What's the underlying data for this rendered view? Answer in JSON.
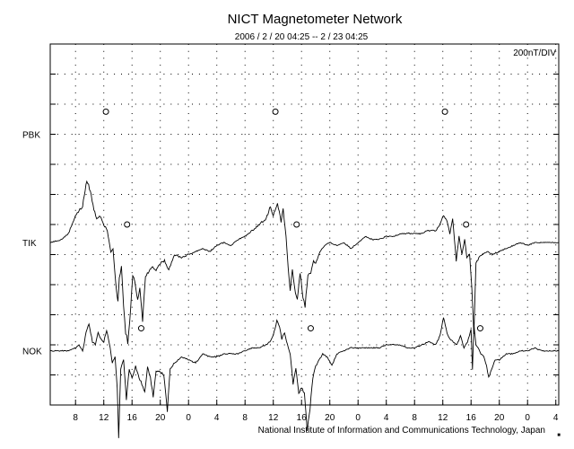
{
  "chart_data": {
    "type": "line",
    "title": "NICT Magnetometer Network",
    "subtitle": "2006 / 2 / 20  04:25 --  2 / 23  04:25",
    "scale_label": "200nT/DIV",
    "credit": "National Institute of Information and Communications Technology, Japan",
    "x_tick_labels": [
      "8",
      "12",
      "16",
      "20",
      "0",
      "4",
      "8",
      "12",
      "16",
      "20",
      "0",
      "4",
      "8",
      "12",
      "16",
      "20",
      "0",
      "4"
    ],
    "x_range_hours": [
      4.4167,
      76.4167
    ],
    "x_tick_start_hour": 8,
    "x_tick_step_hours": 4,
    "y_divisions": 12,
    "grid": "dotted",
    "stations": [
      {
        "name": "PBK",
        "baseline_div": 3,
        "markers_hour": [
          12.3,
          36.3,
          60.3
        ],
        "marker_offset_div": -0.75,
        "points": []
      },
      {
        "name": "TIK",
        "baseline_div": 6.6,
        "markers_hour": [
          15.3,
          39.3,
          63.3
        ],
        "marker_offset_div": -0.6,
        "points": [
          [
            4.4,
            0
          ],
          [
            6,
            0.1
          ],
          [
            7,
            0.3
          ],
          [
            8,
            0.9
          ],
          [
            9,
            1.2
          ],
          [
            9.6,
            2.1
          ],
          [
            10.1,
            1.7
          ],
          [
            10.6,
            1.1
          ],
          [
            11,
            0.8
          ],
          [
            11.5,
            0.9
          ],
          [
            12,
            0.6
          ],
          [
            12.5,
            0.4
          ],
          [
            13,
            -0.3
          ],
          [
            13.3,
            -0.2
          ],
          [
            13.8,
            -1.6
          ],
          [
            14,
            -2.0
          ],
          [
            14.2,
            -1.2
          ],
          [
            14.5,
            -0.8
          ],
          [
            14.8,
            -2.1
          ],
          [
            15.1,
            -3.0
          ],
          [
            15.4,
            -3.3
          ],
          [
            15.8,
            -2.2
          ],
          [
            16.1,
            -1.1
          ],
          [
            16.4,
            -1.3
          ],
          [
            16.8,
            -1.9
          ],
          [
            17.1,
            -1.5
          ],
          [
            17.5,
            -2.6
          ],
          [
            17.9,
            -1.1
          ],
          [
            18.3,
            -1.0
          ],
          [
            18.8,
            -0.8
          ],
          [
            19.4,
            -0.9
          ],
          [
            20,
            -0.7
          ],
          [
            20.6,
            -0.6
          ],
          [
            21.2,
            -0.9
          ],
          [
            22,
            -0.4
          ],
          [
            23,
            -0.5
          ],
          [
            24,
            -0.4
          ],
          [
            25,
            -0.3
          ],
          [
            26,
            -0.2
          ],
          [
            27,
            -0.3
          ],
          [
            28,
            -0.1
          ],
          [
            29,
            0.0
          ],
          [
            30,
            -0.1
          ],
          [
            31,
            0.1
          ],
          [
            32,
            0.2
          ],
          [
            33,
            0.4
          ],
          [
            34,
            0.6
          ],
          [
            35,
            0.8
          ],
          [
            35.6,
            1.2
          ],
          [
            36,
            0.9
          ],
          [
            36.6,
            1.3
          ],
          [
            37.1,
            0.7
          ],
          [
            37.4,
            1.1
          ],
          [
            37.8,
            0.2
          ],
          [
            38.1,
            -0.8
          ],
          [
            38.4,
            -1.6
          ],
          [
            38.7,
            -0.9
          ],
          [
            39,
            -1.5
          ],
          [
            39.4,
            -1.9
          ],
          [
            39.8,
            -1.0
          ],
          [
            40.2,
            -1.8
          ],
          [
            40.5,
            -2.1
          ],
          [
            40.9,
            -1.1
          ],
          [
            41.3,
            -1.0
          ],
          [
            41.7,
            -0.6
          ],
          [
            42,
            -0.7
          ],
          [
            42.6,
            -0.3
          ],
          [
            43.3,
            -0.1
          ],
          [
            44,
            0
          ],
          [
            45,
            -0.1
          ],
          [
            46,
            0.0
          ],
          [
            47,
            -0.2
          ],
          [
            48,
            0
          ],
          [
            49,
            0.2
          ],
          [
            50,
            0.1
          ],
          [
            51,
            0.1
          ],
          [
            52,
            0.2
          ],
          [
            53,
            0.2
          ],
          [
            54,
            0.3
          ],
          [
            55,
            0.3
          ],
          [
            56,
            0.3
          ],
          [
            57,
            0.3
          ],
          [
            58,
            0.4
          ],
          [
            59,
            0.4
          ],
          [
            59.6,
            0.6
          ],
          [
            60.1,
            0.9
          ],
          [
            60.6,
            0.7
          ],
          [
            61,
            0.3
          ],
          [
            61.4,
            0.8
          ],
          [
            61.9,
            -0.6
          ],
          [
            62.3,
            0.2
          ],
          [
            62.7,
            -0.4
          ],
          [
            63.1,
            0.1
          ],
          [
            63.4,
            -0.5
          ],
          [
            63.8,
            -0.4
          ],
          [
            64.1,
            -1.5
          ],
          [
            64.4,
            -3.0
          ],
          [
            64.7,
            -0.7
          ],
          [
            65.1,
            -0.5
          ],
          [
            65.6,
            -0.4
          ],
          [
            66.4,
            -0.3
          ],
          [
            67,
            -0.4
          ],
          [
            68,
            -0.3
          ],
          [
            69,
            -0.2
          ],
          [
            70,
            -0.1
          ],
          [
            71,
            0
          ],
          [
            72,
            -0.1
          ],
          [
            73,
            0
          ],
          [
            74,
            0
          ],
          [
            75,
            0
          ],
          [
            76.4,
            0
          ]
        ]
      },
      {
        "name": "NOK",
        "baseline_div": 10.2,
        "markers_hour": [
          17.3,
          41.3,
          65.3
        ],
        "marker_offset_div": -0.75,
        "points": [
          [
            4.4,
            0
          ],
          [
            6,
            0
          ],
          [
            7,
            0
          ],
          [
            8,
            0.1
          ],
          [
            8.5,
            0.2
          ],
          [
            9,
            0
          ],
          [
            9.5,
            0.6
          ],
          [
            9.9,
            0.9
          ],
          [
            10.4,
            0.3
          ],
          [
            10.8,
            0.2
          ],
          [
            11.2,
            0.6
          ],
          [
            11.6,
            0.4
          ],
          [
            12,
            0.3
          ],
          [
            12.4,
            0.7
          ],
          [
            12.9,
            0.1
          ],
          [
            13.2,
            -0.4
          ],
          [
            13.6,
            -0.2
          ],
          [
            13.9,
            -1.2
          ],
          [
            14.1,
            -2.9
          ],
          [
            14.4,
            -0.6
          ],
          [
            14.8,
            -0.3
          ],
          [
            15.2,
            -1.6
          ],
          [
            15.6,
            -0.6
          ],
          [
            16,
            -0.9
          ],
          [
            16.5,
            -0.5
          ],
          [
            17,
            -0.9
          ],
          [
            17.4,
            -1.1
          ],
          [
            17.8,
            -1.4
          ],
          [
            18.2,
            -0.5
          ],
          [
            18.6,
            -0.9
          ],
          [
            19,
            -1.5
          ],
          [
            19.4,
            -0.7
          ],
          [
            20,
            -0.7
          ],
          [
            20.5,
            -0.8
          ],
          [
            21,
            -2.0
          ],
          [
            21.4,
            -0.6
          ],
          [
            22,
            -0.4
          ],
          [
            23,
            -0.2
          ],
          [
            24,
            -0.3
          ],
          [
            25,
            -0.4
          ],
          [
            26,
            -0.1
          ],
          [
            27,
            -0.2
          ],
          [
            28,
            -0.2
          ],
          [
            29,
            -0.1
          ],
          [
            30,
            -0.1
          ],
          [
            31,
            -0.1
          ],
          [
            32,
            0
          ],
          [
            33,
            0.1
          ],
          [
            34,
            0.1
          ],
          [
            35,
            0.2
          ],
          [
            35.5,
            0.3
          ],
          [
            36,
            0.5
          ],
          [
            36.5,
            1.0
          ],
          [
            36.9,
            0.8
          ],
          [
            37.2,
            0.4
          ],
          [
            37.6,
            0.6
          ],
          [
            38,
            0.2
          ],
          [
            38.4,
            -0.1
          ],
          [
            38.8,
            -1.1
          ],
          [
            39.2,
            -0.6
          ],
          [
            39.6,
            -1.4
          ],
          [
            40,
            -1.2
          ],
          [
            40.4,
            -1.4
          ],
          [
            40.8,
            -2.6
          ],
          [
            41.2,
            -1.9
          ],
          [
            41.6,
            -0.9
          ],
          [
            42,
            -0.5
          ],
          [
            42.5,
            -0.3
          ],
          [
            43,
            -0.1
          ],
          [
            43.6,
            -0.2
          ],
          [
            44.3,
            -0.5
          ],
          [
            45,
            -0.1
          ],
          [
            46,
            0
          ],
          [
            47,
            0.1
          ],
          [
            48,
            0.1
          ],
          [
            49,
            0.1
          ],
          [
            50,
            0.1
          ],
          [
            51,
            0.1
          ],
          [
            52,
            0.2
          ],
          [
            53,
            0.2
          ],
          [
            54,
            0.2
          ],
          [
            55,
            0.1
          ],
          [
            56,
            0.1
          ],
          [
            57,
            0.2
          ],
          [
            58,
            0.3
          ],
          [
            59,
            0.2
          ],
          [
            59.6,
            0.5
          ],
          [
            60.1,
            1.1
          ],
          [
            60.6,
            0.6
          ],
          [
            61,
            0.4
          ],
          [
            61.5,
            0.3
          ],
          [
            62,
            0.2
          ],
          [
            62.5,
            0.5
          ],
          [
            63,
            0.1
          ],
          [
            63.5,
            0.3
          ],
          [
            64,
            0.7
          ],
          [
            64.2,
            -0.6
          ],
          [
            64.4,
            0.9
          ],
          [
            64.7,
            0.2
          ],
          [
            65,
            0.1
          ],
          [
            65.4,
            -0.1
          ],
          [
            65.8,
            -0.2
          ],
          [
            66.2,
            -0.5
          ],
          [
            66.5,
            -0.9
          ],
          [
            66.9,
            -0.6
          ],
          [
            67.4,
            -0.3
          ],
          [
            68,
            -0.3
          ],
          [
            68.5,
            -0.2
          ],
          [
            69,
            -0.1
          ],
          [
            70,
            -0.1
          ],
          [
            71,
            0
          ],
          [
            72,
            0
          ],
          [
            73,
            0.1
          ],
          [
            74,
            0
          ],
          [
            75,
            0
          ],
          [
            76.4,
            0
          ]
        ]
      }
    ]
  }
}
